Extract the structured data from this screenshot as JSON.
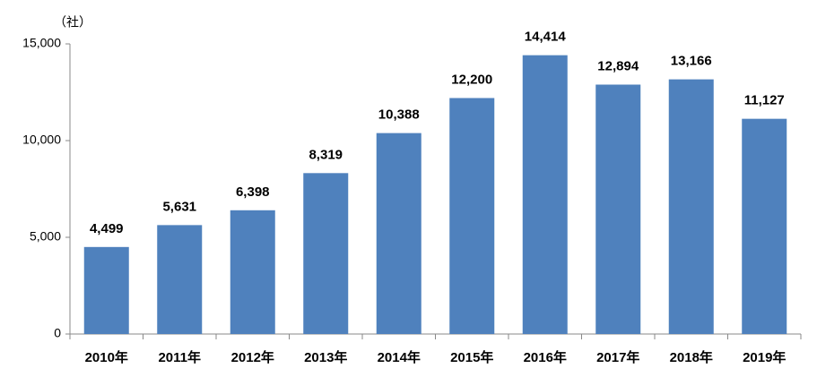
{
  "chart_data": {
    "type": "bar",
    "unit": "（社）",
    "categories": [
      "2010年",
      "2011年",
      "2012年",
      "2013年",
      "2014年",
      "2015年",
      "2016年",
      "2017年",
      "2018年",
      "2019年"
    ],
    "values": [
      4499,
      5631,
      6398,
      8319,
      10388,
      12200,
      14414,
      12894,
      13166,
      11127
    ],
    "value_labels": [
      "4,499",
      "5,631",
      "6,398",
      "8,319",
      "10,388",
      "12,200",
      "14,414",
      "12,894",
      "13,166",
      "11,127"
    ],
    "color": "#4f81bd",
    "ylim": [
      0,
      15000
    ],
    "yticks": [
      0,
      {
        "value": 5000,
        "label": "5,000"
      },
      {
        "value": 10000,
        "label": "10,000"
      },
      {
        "value": 15000,
        "label": "15,000"
      }
    ],
    "grid": false
  }
}
